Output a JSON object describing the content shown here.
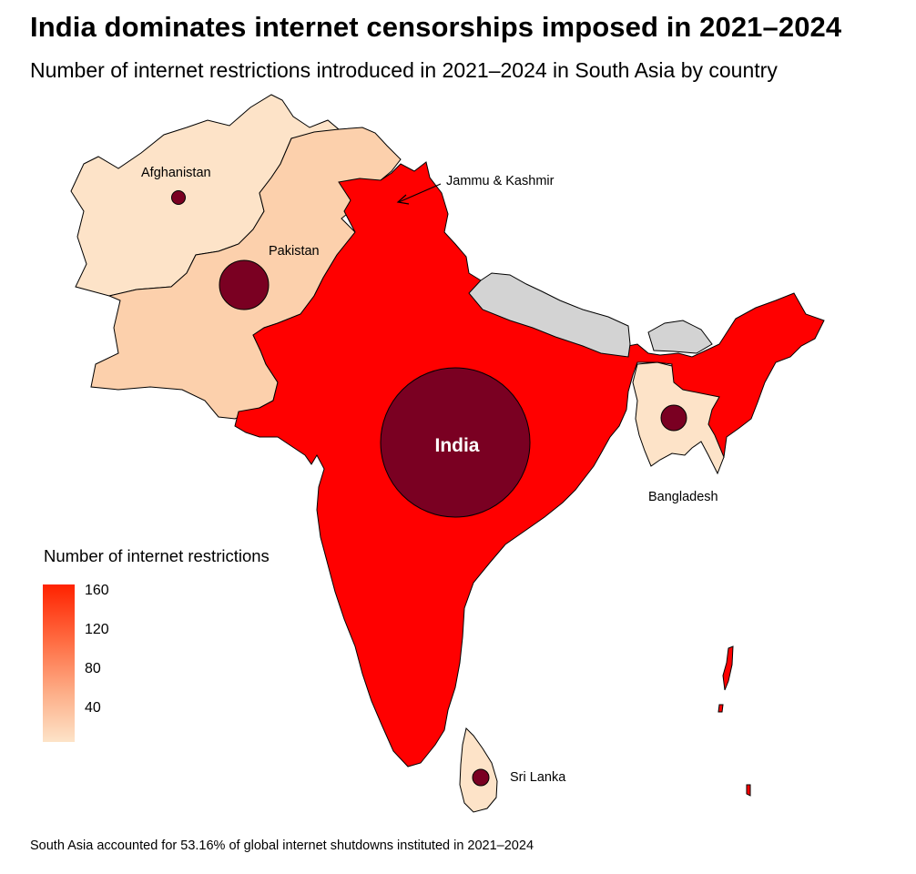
{
  "title": "India dominates internet censorships imposed in 2021–2024",
  "subtitle": "Number of internet restrictions introduced in 2021–2024 in South Asia by country",
  "footnote": "South Asia accounted for 53.16% of global internet shutdowns instituted in 2021–2024",
  "legend": {
    "title": "Number of internet restrictions",
    "ticks": [
      "160",
      "120",
      "80",
      "40"
    ],
    "color_high": "#ff0000",
    "color_low": "#fde3c8"
  },
  "labels": {
    "afghanistan": "Afghanistan",
    "pakistan": "Pakistan",
    "india": "India",
    "jammu_kashmir": "Jammu & Kashmir",
    "bangladesh": "Bangladesh",
    "sri_lanka": "Sri Lanka"
  },
  "colors": {
    "india": "#ff0000",
    "pakistan": "#fcd0ac",
    "afghanistan": "#fde3c8",
    "bangladesh": "#fde3c8",
    "sri_lanka": "#fde3c8",
    "no_data": "#d3d3d3",
    "bubble": "#7a0022"
  }
}
